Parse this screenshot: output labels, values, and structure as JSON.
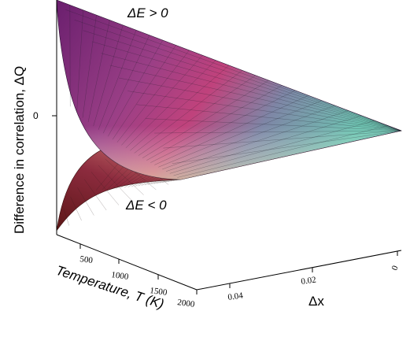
{
  "chart_data": {
    "type": "surface",
    "title": "",
    "zlabel": "Difference in correlation, ΔQ",
    "xlabel": "Temperature, T (K)",
    "ylabel": "Δx",
    "z_ticks": [
      "0"
    ],
    "x_ticks": [
      "500",
      "1000",
      "1500",
      "2000"
    ],
    "y_ticks": [
      "0.04",
      "0.02",
      "0"
    ],
    "x_range": [
      200,
      2000
    ],
    "y_range": [
      0,
      0.05
    ],
    "series": [
      {
        "name": "ΔE > 0",
        "sign": "positive"
      },
      {
        "name": "ΔE < 0",
        "sign": "negative"
      }
    ],
    "colormap": [
      "#6a1f6e",
      "#c0427c",
      "#7fc3b9",
      "#eef0a8"
    ],
    "grid": true
  }
}
